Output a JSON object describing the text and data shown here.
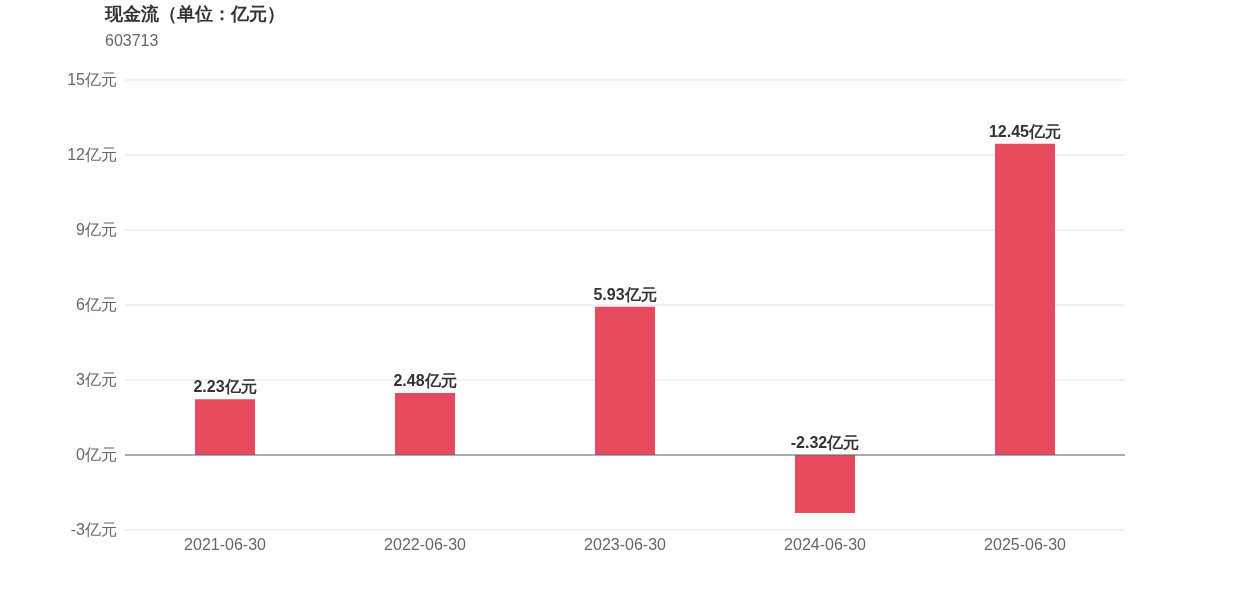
{
  "chart_data": {
    "type": "bar",
    "title": "现金流（单位：亿元）",
    "subtitle": "603713",
    "categories": [
      "2021-06-30",
      "2022-06-30",
      "2023-06-30",
      "2024-06-30",
      "2025-06-30"
    ],
    "values": [
      2.23,
      2.48,
      5.93,
      -2.32,
      12.45
    ],
    "value_labels": [
      "2.23亿元",
      "2.48亿元",
      "5.93亿元",
      "-2.32亿元",
      "12.45亿元"
    ],
    "color": "#e64a5c",
    "ylim": [
      -3,
      15
    ],
    "yticks": [
      {
        "value": -3,
        "label": "-3亿元"
      },
      {
        "value": 0,
        "label": "0亿元"
      },
      {
        "value": 3,
        "label": "3亿元"
      },
      {
        "value": 6,
        "label": "6亿元"
      },
      {
        "value": 9,
        "label": "9亿元"
      },
      {
        "value": 12,
        "label": "12亿元"
      },
      {
        "value": 15,
        "label": "15亿元"
      }
    ],
    "grid": "y"
  }
}
